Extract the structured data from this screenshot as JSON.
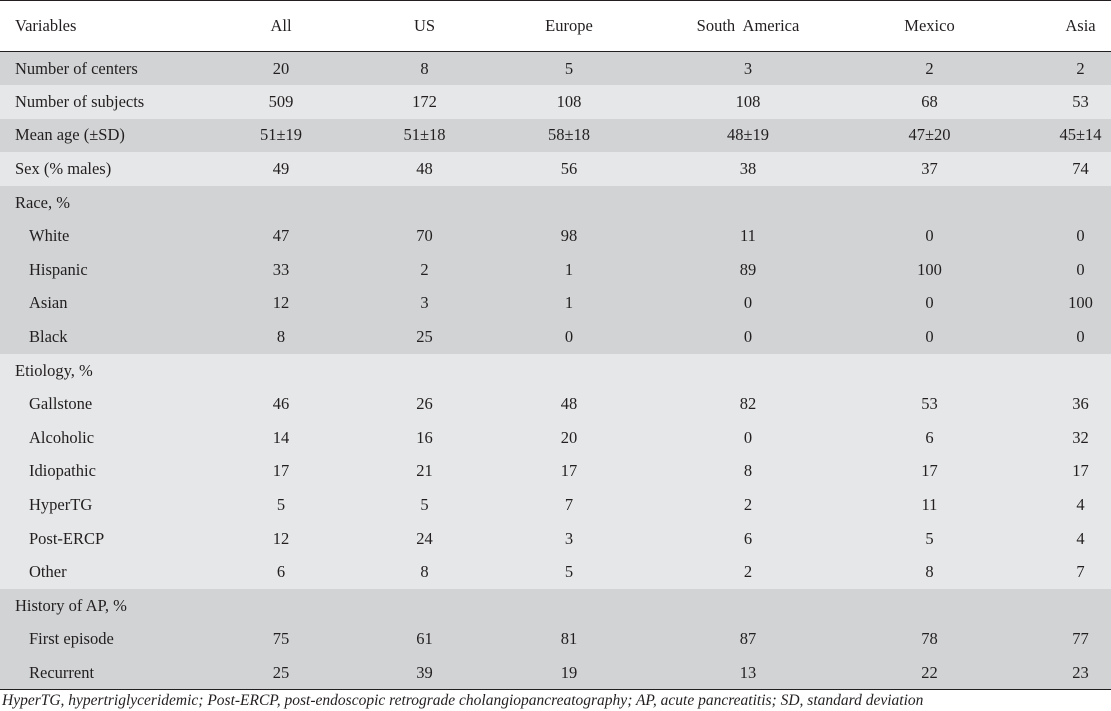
{
  "table": {
    "headers": [
      "Variables",
      "All",
      "US",
      "Europe",
      "South  America",
      "Mexico",
      "Asia"
    ],
    "rows": [
      {
        "label": "Number of centers",
        "values": [
          "20",
          "8",
          "5",
          "3",
          "2",
          "2"
        ],
        "shade": "dark",
        "sub": false
      },
      {
        "label": "Number of subjects",
        "values": [
          "509",
          "172",
          "108",
          "108",
          "68",
          "53"
        ],
        "shade": "light",
        "sub": false
      },
      {
        "label": "Mean age (±SD)",
        "values": [
          "51±19",
          "51±18",
          "58±18",
          "48±19",
          "47±20",
          "45±14"
        ],
        "shade": "dark",
        "sub": false
      },
      {
        "label": "Sex (% males)",
        "values": [
          "49",
          "48",
          "56",
          "38",
          "37",
          "74"
        ],
        "shade": "light",
        "sub": false
      },
      {
        "label": "Race, %",
        "values": [
          "",
          "",
          "",
          "",
          "",
          ""
        ],
        "shade": "dark",
        "sub": false
      },
      {
        "label": "White",
        "values": [
          "47",
          "70",
          "98",
          "11",
          "0",
          "0"
        ],
        "shade": "dark",
        "sub": true
      },
      {
        "label": "Hispanic",
        "values": [
          "33",
          "2",
          "1",
          "89",
          "100",
          "0"
        ],
        "shade": "dark",
        "sub": true
      },
      {
        "label": "Asian",
        "values": [
          "12",
          "3",
          "1",
          "0",
          "0",
          "100"
        ],
        "shade": "dark",
        "sub": true
      },
      {
        "label": "Black",
        "values": [
          "8",
          "25",
          "0",
          "0",
          "0",
          "0"
        ],
        "shade": "dark",
        "sub": true
      },
      {
        "label": "Etiology, %",
        "values": [
          "",
          "",
          "",
          "",
          "",
          ""
        ],
        "shade": "light",
        "sub": false
      },
      {
        "label": "Gallstone",
        "values": [
          "46",
          "26",
          "48",
          "82",
          "53",
          "36"
        ],
        "shade": "light",
        "sub": true
      },
      {
        "label": "Alcoholic",
        "values": [
          "14",
          "16",
          "20",
          "0",
          "6",
          "32"
        ],
        "shade": "light",
        "sub": true
      },
      {
        "label": "Idiopathic",
        "values": [
          "17",
          "21",
          "17",
          "8",
          "17",
          "17"
        ],
        "shade": "light",
        "sub": true
      },
      {
        "label": "HyperTG",
        "values": [
          "5",
          "5",
          "7",
          "2",
          "11",
          "4"
        ],
        "shade": "light",
        "sub": true
      },
      {
        "label": "Post-ERCP",
        "values": [
          "12",
          "24",
          "3",
          "6",
          "5",
          "4"
        ],
        "shade": "light",
        "sub": true
      },
      {
        "label": "Other",
        "values": [
          "6",
          "8",
          "5",
          "2",
          "8",
          "7"
        ],
        "shade": "light",
        "sub": true
      },
      {
        "label": "History of AP, %",
        "values": [
          "",
          "",
          "",
          "",
          "",
          ""
        ],
        "shade": "dark",
        "sub": false
      },
      {
        "label": "First episode",
        "values": [
          "75",
          "61",
          "81",
          "87",
          "78",
          "77"
        ],
        "shade": "dark",
        "sub": true
      },
      {
        "label": "Recurrent",
        "values": [
          "25",
          "39",
          "19",
          "13",
          "22",
          "23"
        ],
        "shade": "dark",
        "sub": true
      }
    ]
  },
  "footnote": "HyperTG, hypertriglyceridemic; Post-ERCP, post-endoscopic retrograde cholangiopancreatography; AP, acute pancreatitis; SD, standard deviation",
  "colors": {
    "dark_band": "#d1d3d4",
    "light_band": "#e6e7e8",
    "rule": "#231f20",
    "text": "#231f20"
  }
}
